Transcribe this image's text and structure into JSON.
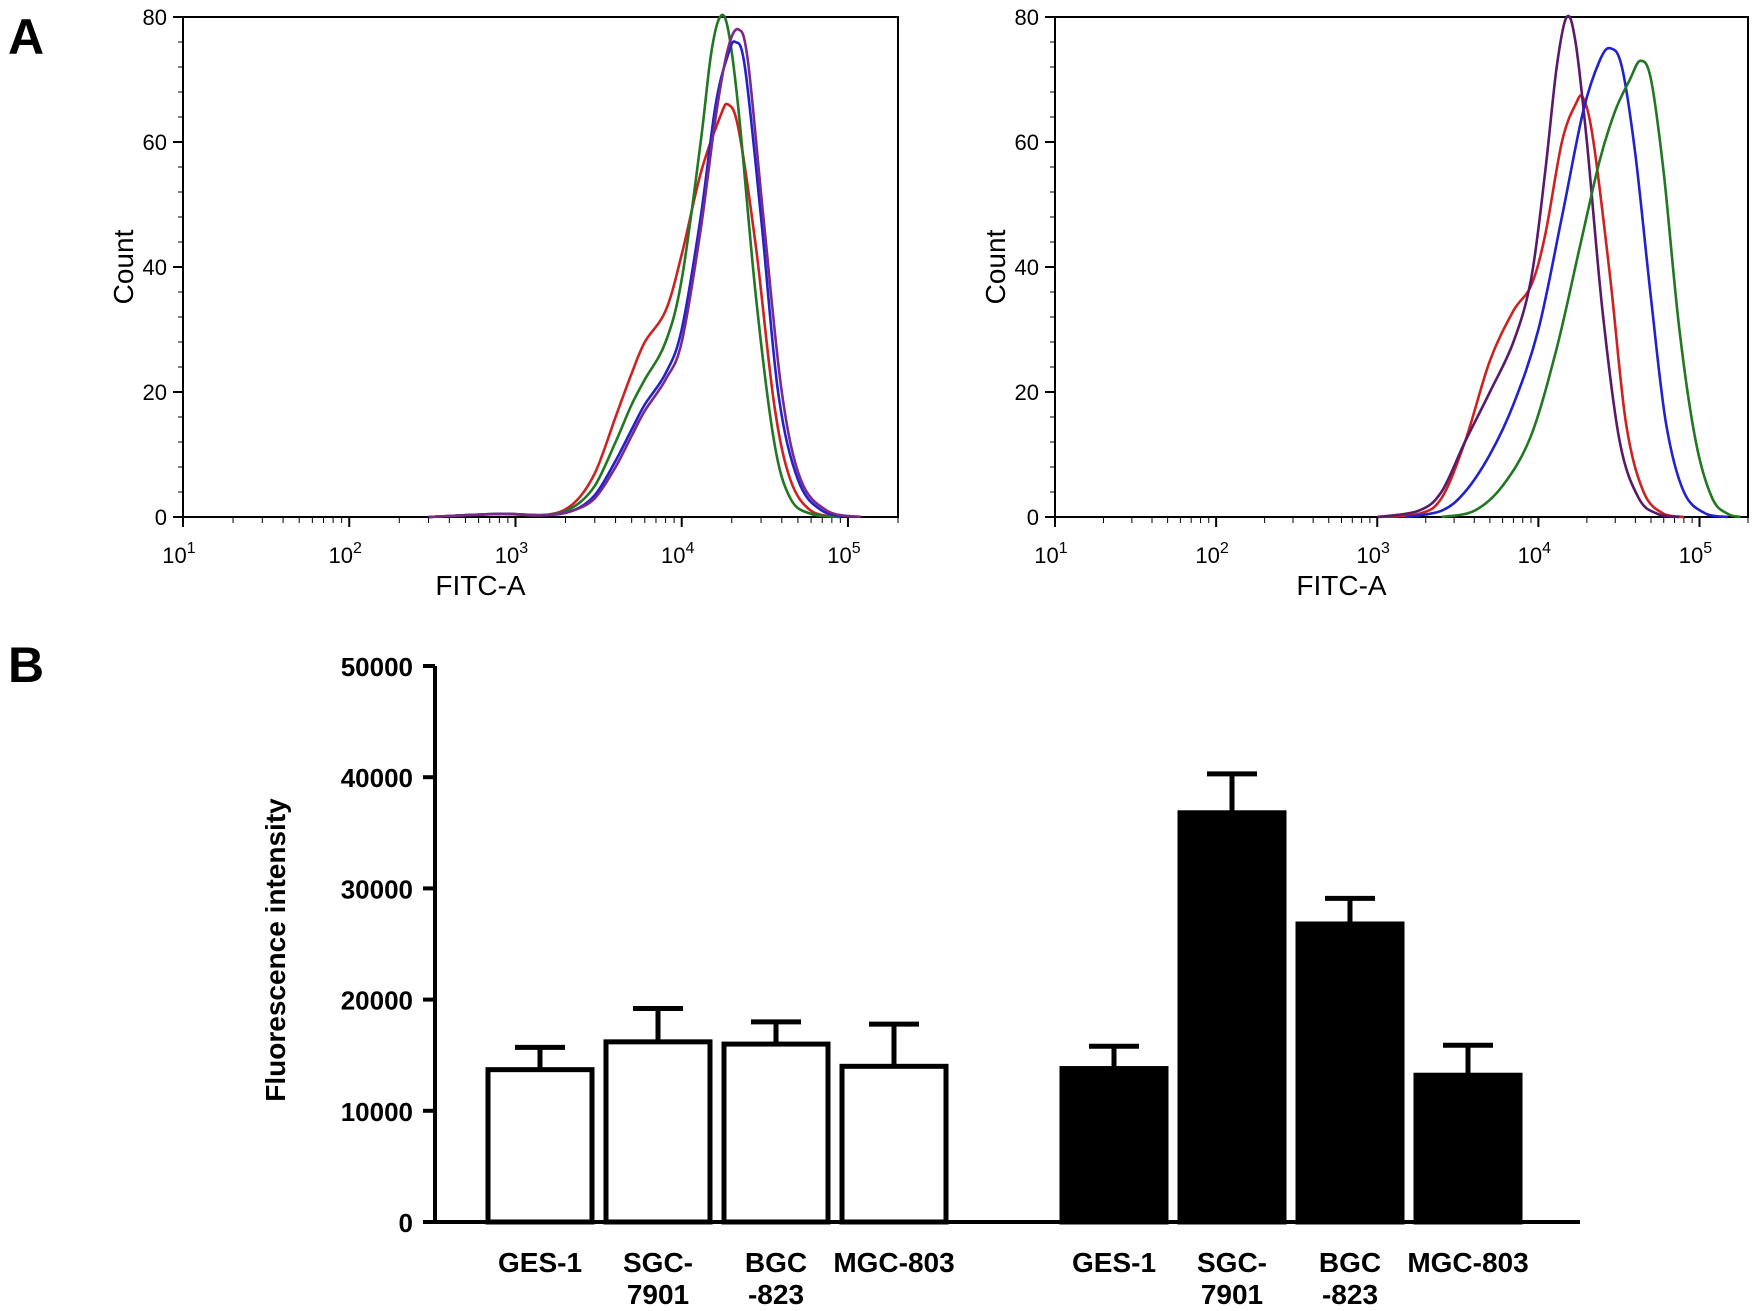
{
  "panels": {
    "a_label": "A",
    "b_label": "B"
  },
  "chart_data": [
    {
      "type": "line",
      "panel": "A-left",
      "xlabel": "FITC-A",
      "ylabel": "Count",
      "x_scale": "log",
      "xlim": [
        10,
        200000
      ],
      "ylim": [
        0,
        80
      ],
      "y_ticks": [
        "0",
        "20",
        "40",
        "60",
        "80"
      ],
      "x_ticks": [
        {
          "base": "10",
          "exp": "1",
          "value": 10
        },
        {
          "base": "10",
          "exp": "2",
          "value": 100
        },
        {
          "base": "10",
          "exp": "3",
          "value": 1000
        },
        {
          "base": "10",
          "exp": "4",
          "value": 10000
        },
        {
          "base": "10",
          "exp": "5",
          "value": 100000
        }
      ],
      "series": [
        {
          "color": "#cc2222",
          "points": [
            [
              300,
              0
            ],
            [
              800,
              0.5
            ],
            [
              1500,
              0.3
            ],
            [
              2200,
              2
            ],
            [
              3000,
              7
            ],
            [
              4000,
              16
            ],
            [
              5000,
              23
            ],
            [
              6000,
              28
            ],
            [
              8000,
              33
            ],
            [
              10000,
              42
            ],
            [
              13000,
              55
            ],
            [
              17000,
              64
            ],
            [
              19000,
              66
            ],
            [
              22000,
              62
            ],
            [
              28000,
              43
            ],
            [
              36000,
              18
            ],
            [
              45000,
              6
            ],
            [
              60000,
              1
            ],
            [
              90000,
              0
            ]
          ]
        },
        {
          "color": "#227722",
          "points": [
            [
              300,
              0
            ],
            [
              800,
              0.5
            ],
            [
              1500,
              0.3
            ],
            [
              2200,
              1.5
            ],
            [
              3000,
              5
            ],
            [
              4000,
              12
            ],
            [
              5000,
              18
            ],
            [
              6000,
              22
            ],
            [
              8000,
              28
            ],
            [
              10000,
              38
            ],
            [
              13000,
              60
            ],
            [
              15000,
              74
            ],
            [
              17000,
              80
            ],
            [
              19000,
              78
            ],
            [
              22000,
              65
            ],
            [
              28000,
              35
            ],
            [
              36000,
              12
            ],
            [
              45000,
              3
            ],
            [
              60000,
              0.5
            ],
            [
              90000,
              0
            ]
          ]
        },
        {
          "color": "#2222cc",
          "points": [
            [
              300,
              0
            ],
            [
              800,
              0.5
            ],
            [
              1500,
              0.3
            ],
            [
              2200,
              1
            ],
            [
              3000,
              3.5
            ],
            [
              4000,
              9
            ],
            [
              5000,
              14
            ],
            [
              6000,
              18
            ],
            [
              8000,
              23
            ],
            [
              10000,
              30
            ],
            [
              13000,
              48
            ],
            [
              16000,
              66
            ],
            [
              19000,
              74
            ],
            [
              21000,
              76
            ],
            [
              24000,
              72
            ],
            [
              30000,
              48
            ],
            [
              38000,
              20
            ],
            [
              50000,
              6
            ],
            [
              70000,
              1
            ],
            [
              110000,
              0
            ]
          ]
        },
        {
          "color": "#7a2a8a",
          "points": [
            [
              300,
              0
            ],
            [
              800,
              0.5
            ],
            [
              1500,
              0.3
            ],
            [
              2200,
              1
            ],
            [
              3000,
              3
            ],
            [
              4000,
              8
            ],
            [
              5000,
              13
            ],
            [
              6000,
              17
            ],
            [
              8000,
              22
            ],
            [
              10000,
              28
            ],
            [
              13000,
              46
            ],
            [
              16000,
              64
            ],
            [
              19000,
              75
            ],
            [
              22000,
              78
            ],
            [
              25000,
              73
            ],
            [
              31000,
              48
            ],
            [
              40000,
              20
            ],
            [
              52000,
              6
            ],
            [
              75000,
              1
            ],
            [
              120000,
              0
            ]
          ]
        }
      ]
    },
    {
      "type": "line",
      "panel": "A-right",
      "xlabel": "FITC-A",
      "ylabel": "Count",
      "x_scale": "log",
      "xlim": [
        10,
        200000
      ],
      "ylim": [
        0,
        80
      ],
      "y_ticks": [
        "0",
        "20",
        "40",
        "60",
        "80"
      ],
      "x_ticks": [
        {
          "base": "10",
          "exp": "1",
          "value": 10
        },
        {
          "base": "10",
          "exp": "2",
          "value": 100
        },
        {
          "base": "10",
          "exp": "3",
          "value": 1000
        },
        {
          "base": "10",
          "exp": "4",
          "value": 10000
        },
        {
          "base": "10",
          "exp": "5",
          "value": 100000
        }
      ],
      "series": [
        {
          "color": "#cc2222",
          "points": [
            [
              1000,
              0
            ],
            [
              1800,
              0.5
            ],
            [
              2500,
              3
            ],
            [
              3500,
              12
            ],
            [
              5000,
              25
            ],
            [
              7000,
              33
            ],
            [
              9000,
              37
            ],
            [
              11000,
              45
            ],
            [
              14000,
              60
            ],
            [
              17000,
              66
            ],
            [
              19000,
              67
            ],
            [
              22000,
              60
            ],
            [
              28000,
              38
            ],
            [
              35000,
              15
            ],
            [
              45000,
              4
            ],
            [
              60000,
              0.5
            ],
            [
              80000,
              0
            ]
          ]
        },
        {
          "color": "#5a1a6a",
          "points": [
            [
              1000,
              0
            ],
            [
              1800,
              1
            ],
            [
              2500,
              4
            ],
            [
              3500,
              12
            ],
            [
              5000,
              20
            ],
            [
              7000,
              28
            ],
            [
              9000,
              38
            ],
            [
              11000,
              55
            ],
            [
              13000,
              72
            ],
            [
              15000,
              80
            ],
            [
              17000,
              76
            ],
            [
              20000,
              60
            ],
            [
              25000,
              33
            ],
            [
              32000,
              12
            ],
            [
              42000,
              3
            ],
            [
              55000,
              0.5
            ],
            [
              75000,
              0
            ]
          ]
        },
        {
          "color": "#2222cc",
          "points": [
            [
              1500,
              0
            ],
            [
              2500,
              1
            ],
            [
              3500,
              4
            ],
            [
              5000,
              10
            ],
            [
              7000,
              18
            ],
            [
              10000,
              30
            ],
            [
              14000,
              48
            ],
            [
              19000,
              65
            ],
            [
              24000,
              73
            ],
            [
              28000,
              75
            ],
            [
              33000,
              72
            ],
            [
              40000,
              58
            ],
            [
              50000,
              35
            ],
            [
              62000,
              15
            ],
            [
              80000,
              4
            ],
            [
              110000,
              0.5
            ],
            [
              150000,
              0
            ]
          ]
        },
        {
          "color": "#227722",
          "points": [
            [
              2500,
              0
            ],
            [
              4000,
              1
            ],
            [
              6000,
              5
            ],
            [
              9000,
              13
            ],
            [
              13000,
              27
            ],
            [
              18000,
              43
            ],
            [
              24000,
              57
            ],
            [
              30000,
              65
            ],
            [
              37000,
              70
            ],
            [
              43000,
              73
            ],
            [
              50000,
              70
            ],
            [
              60000,
              55
            ],
            [
              75000,
              30
            ],
            [
              95000,
              12
            ],
            [
              120000,
              3
            ],
            [
              150000,
              0.5
            ],
            [
              180000,
              0
            ]
          ]
        }
      ]
    },
    {
      "type": "bar",
      "panel": "B",
      "ylabel": "Fluorescence intensity",
      "ylim": [
        0,
        50000
      ],
      "y_ticks": [
        "0",
        "10000",
        "20000",
        "30000",
        "40000",
        "50000"
      ],
      "groups": [
        {
          "fill": "white",
          "categories": [
            {
              "line1": "GES-1",
              "line2": ""
            },
            {
              "line1": "SGC-",
              "line2": "7901"
            },
            {
              "line1": "BGC",
              "line2": "-823"
            },
            {
              "line1": "MGC-803",
              "line2": ""
            }
          ],
          "values": [
            13700,
            16200,
            16000,
            14000
          ],
          "errors": [
            2000,
            3000,
            2000,
            3800
          ]
        },
        {
          "fill": "black",
          "categories": [
            {
              "line1": "GES-1",
              "line2": ""
            },
            {
              "line1": "SGC-",
              "line2": "7901"
            },
            {
              "line1": "BGC",
              "line2": "-823"
            },
            {
              "line1": "MGC-803",
              "line2": ""
            }
          ],
          "values": [
            13800,
            36800,
            26800,
            13200
          ],
          "errors": [
            2000,
            3500,
            2300,
            2700
          ]
        }
      ]
    }
  ]
}
